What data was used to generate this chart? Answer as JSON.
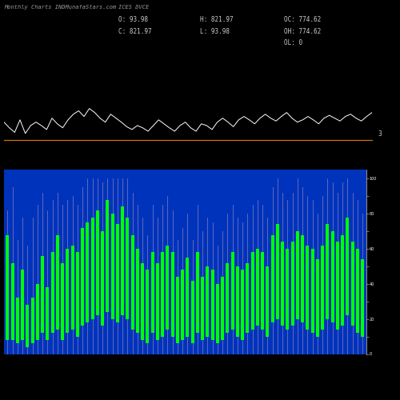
{
  "title_left": "Monthly Charts INDMunafaStars.com",
  "title_right": "ICES DVCE",
  "info_col1": "O: 93.98\nC: 821.97",
  "info_col2": "H: 821.97\nL: 93.98",
  "info_col3": "OC: 774.62\nOH: 774.62\nOL: 0",
  "bg_color": "#000000",
  "line_color": "#ffffff",
  "bar_color": "#00ff00",
  "bar_bg_color": "#0033bb",
  "orange_line_color": "#cc7700",
  "axis_number": "3",
  "line_data": [
    48,
    38,
    30,
    52,
    28,
    42,
    48,
    42,
    35,
    55,
    45,
    38,
    52,
    62,
    68,
    58,
    72,
    65,
    55,
    48,
    62,
    55,
    48,
    40,
    35,
    42,
    38,
    32,
    42,
    52,
    45,
    38,
    32,
    42,
    48,
    38,
    32,
    45,
    42,
    35,
    48,
    55,
    48,
    40,
    52,
    58,
    52,
    45,
    55,
    62,
    55,
    50,
    58,
    65,
    55,
    48,
    52,
    58,
    52,
    45,
    55,
    60,
    55,
    50,
    58,
    62,
    55,
    50,
    58,
    65
  ],
  "bar_heights": [
    68,
    52,
    32,
    48,
    28,
    32,
    40,
    56,
    38,
    58,
    68,
    52,
    60,
    62,
    58,
    72,
    75,
    78,
    82,
    70,
    88,
    80,
    74,
    84,
    78,
    68,
    60,
    52,
    48,
    58,
    52,
    58,
    62,
    58,
    44,
    48,
    55,
    42,
    58,
    44,
    50,
    48,
    40,
    44,
    52,
    58,
    50,
    48,
    52,
    58,
    60,
    58,
    50,
    68,
    74,
    64,
    60,
    64,
    70,
    68,
    62,
    60,
    54,
    62,
    74,
    70,
    64,
    68,
    78,
    64,
    60,
    54
  ],
  "bar_highs": [
    82,
    95,
    65,
    78,
    62,
    78,
    85,
    92,
    82,
    88,
    92,
    85,
    88,
    90,
    85,
    95,
    100,
    100,
    100,
    98,
    100,
    100,
    100,
    100,
    100,
    92,
    85,
    78,
    68,
    85,
    78,
    85,
    90,
    82,
    65,
    72,
    80,
    65,
    85,
    70,
    78,
    75,
    62,
    70,
    80,
    85,
    78,
    75,
    80,
    85,
    88,
    85,
    78,
    95,
    100,
    92,
    88,
    92,
    100,
    95,
    90,
    88,
    80,
    90,
    100,
    98,
    92,
    98,
    100,
    92,
    88,
    80
  ],
  "bar_bottoms": [
    8,
    8,
    6,
    8,
    4,
    6,
    8,
    12,
    8,
    12,
    14,
    8,
    12,
    14,
    10,
    16,
    18,
    20,
    22,
    16,
    24,
    20,
    18,
    22,
    20,
    14,
    12,
    8,
    6,
    12,
    8,
    10,
    14,
    10,
    6,
    8,
    10,
    6,
    12,
    8,
    10,
    8,
    6,
    8,
    12,
    14,
    10,
    8,
    12,
    14,
    16,
    14,
    10,
    18,
    20,
    16,
    14,
    16,
    20,
    18,
    14,
    12,
    10,
    14,
    20,
    18,
    14,
    16,
    22,
    16,
    12,
    10
  ]
}
